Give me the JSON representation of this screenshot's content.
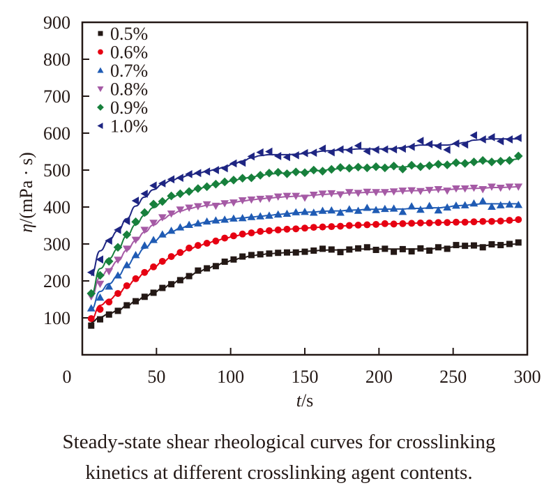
{
  "caption": {
    "line1": "Steady-state shear rheological curves for crosslinking",
    "line2": "kinetics at different crosslinking agent contents."
  },
  "chart_data": {
    "type": "scatter",
    "title": "",
    "xlabel_italic": "t",
    "xlabel_unit": "/s",
    "ylabel_italic": "η",
    "ylabel_unit": "/(mPa · s)",
    "xlim": [
      0,
      300
    ],
    "ylim": [
      0,
      900
    ],
    "xticks": [
      0,
      50,
      100,
      150,
      200,
      250,
      300
    ],
    "yticks": [
      100,
      200,
      300,
      400,
      500,
      600,
      700,
      800,
      900
    ],
    "grid": false,
    "legend_position": "top-left",
    "x": [
      6,
      12,
      18,
      24,
      30,
      36,
      42,
      48,
      54,
      60,
      66,
      72,
      78,
      84,
      90,
      96,
      102,
      108,
      114,
      120,
      126,
      132,
      138,
      144,
      150,
      156,
      162,
      168,
      174,
      180,
      186,
      192,
      198,
      204,
      210,
      216,
      222,
      228,
      234,
      240,
      246,
      252,
      258,
      264,
      270,
      276,
      282,
      288,
      294
    ],
    "series": [
      {
        "name": "0.5%",
        "color": "#231815",
        "marker": "square",
        "values": [
          79,
          96,
          109,
          119,
          134,
          145,
          157,
          168,
          181,
          191,
          202,
          213,
          228,
          234,
          240,
          252,
          258,
          266,
          270,
          272,
          274,
          276,
          277,
          277,
          279,
          282,
          287,
          285,
          278,
          285,
          288,
          291,
          284,
          287,
          279,
          286,
          280,
          288,
          282,
          291,
          287,
          297,
          295,
          296,
          291,
          299,
          297,
          300,
          304
        ]
      },
      {
        "name": "0.6%",
        "color": "#e60012",
        "marker": "circle",
        "values": [
          98,
          123,
          143,
          166,
          187,
          206,
          223,
          238,
          253,
          266,
          277,
          289,
          296,
          302,
          308,
          316,
          322,
          327,
          330,
          334,
          336,
          338,
          340,
          341,
          343,
          345,
          346,
          347,
          348,
          350,
          351,
          352,
          353,
          355,
          354,
          355,
          356,
          357,
          357,
          358,
          358,
          359,
          359,
          360,
          361,
          361,
          362,
          364,
          366
        ]
      },
      {
        "name": "0.7%",
        "color": "#1f5bb4",
        "marker": "triangle-up",
        "values": [
          126,
          155,
          185,
          215,
          243,
          270,
          296,
          311,
          326,
          336,
          345,
          352,
          356,
          361,
          364,
          366,
          369,
          370,
          373,
          375,
          377,
          380,
          382,
          386,
          387,
          385,
          390,
          391,
          385,
          394,
          390,
          398,
          392,
          395,
          396,
          387,
          402,
          393,
          403,
          391,
          399,
          404,
          405,
          410,
          416,
          401,
          405,
          407,
          406
        ]
      },
      {
        "name": "0.8%",
        "color": "#a55aa5",
        "marker": "triangle-down",
        "values": [
          158,
          192,
          226,
          257,
          287,
          311,
          338,
          357,
          372,
          382,
          393,
          398,
          402,
          407,
          403,
          410,
          412,
          418,
          420,
          422,
          423,
          428,
          430,
          430,
          425,
          433,
          436,
          437,
          434,
          440,
          438,
          441,
          440,
          440,
          442,
          444,
          445,
          443,
          446,
          448,
          444,
          450,
          450,
          452,
          448,
          455,
          452,
          455,
          455
        ]
      },
      {
        "name": "0.9%",
        "color": "#17803c",
        "marker": "diamond",
        "values": [
          166,
          215,
          253,
          291,
          325,
          360,
          385,
          408,
          415,
          430,
          436,
          442,
          450,
          455,
          462,
          468,
          473,
          478,
          479,
          486,
          492,
          494,
          490,
          495,
          493,
          500,
          497,
          502,
          507,
          505,
          508,
          506,
          509,
          506,
          511,
          503,
          513,
          509,
          512,
          516,
          514,
          520,
          518,
          522,
          526,
          522,
          524,
          526,
          538
        ]
      },
      {
        "name": "1.0%",
        "color": "#1e2582",
        "marker": "triangle-left",
        "values": [
          223,
          258,
          309,
          338,
          362,
          417,
          436,
          458,
          464,
          475,
          479,
          489,
          492,
          496,
          500,
          505,
          518,
          520,
          537,
          548,
          550,
          538,
          535,
          540,
          546,
          547,
          558,
          548,
          556,
          554,
          566,
          551,
          555,
          556,
          556,
          558,
          563,
          579,
          570,
          565,
          555,
          572,
          569,
          594,
          583,
          589,
          578,
          583,
          587
        ]
      }
    ],
    "fit_curves": [
      {
        "series": "0.5%",
        "y0": 88,
        "plateau": 300,
        "shape": "sigmoidal"
      },
      {
        "series": "0.6%",
        "y0": 95,
        "plateau": 365,
        "shape": "sigmoidal"
      },
      {
        "series": "0.7%",
        "y0": 122,
        "plateau": 407,
        "shape": "sigmoidal"
      },
      {
        "series": "0.8%",
        "y0": 155,
        "plateau": 455,
        "shape": "sigmoidal"
      },
      {
        "series": "0.9%",
        "y0": 162,
        "plateau": 530,
        "shape": "sigmoidal"
      },
      {
        "series": "1.0%",
        "y0": 215,
        "plateau": 580,
        "shape": "sigmoidal"
      }
    ]
  }
}
